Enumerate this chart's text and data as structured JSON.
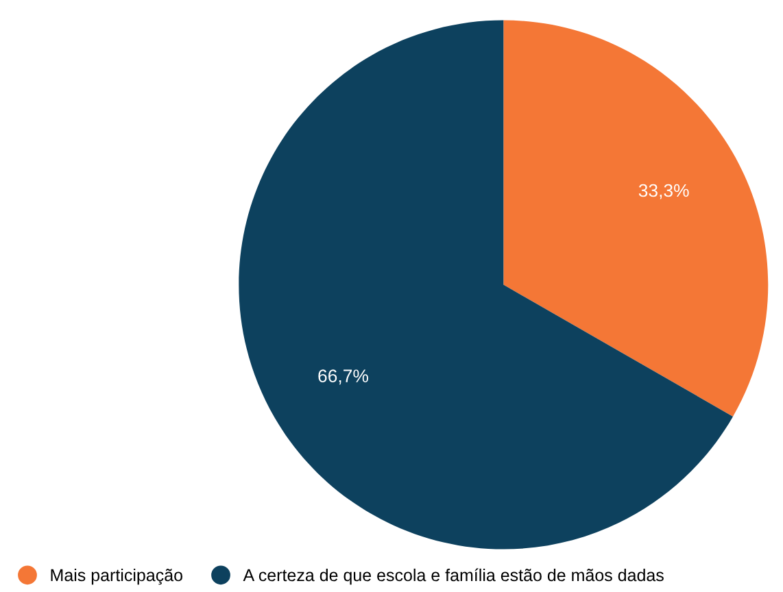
{
  "chart_data": {
    "type": "pie",
    "categories": [
      "Mais participação",
      "A certeza de que escola e família estão de mãos dadas"
    ],
    "values": [
      33.3,
      66.7
    ],
    "colors": [
      "#f47736",
      "#0d415e"
    ],
    "value_labels": [
      "33,3%",
      "66,7%"
    ],
    "legend": "bottom left"
  }
}
